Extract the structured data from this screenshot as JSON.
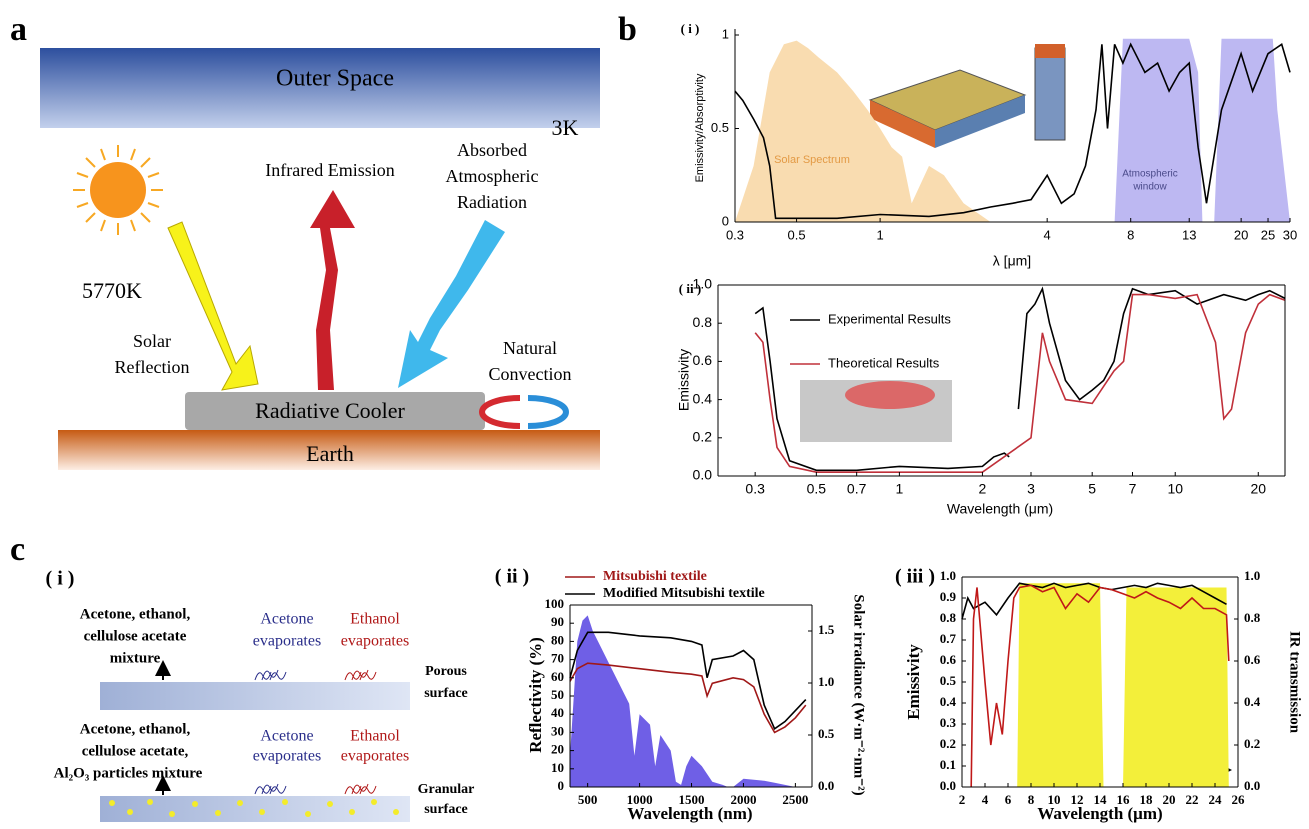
{
  "panel_labels": [
    "a",
    "b",
    "c"
  ],
  "diagram_a": {
    "outer_space": "Outer Space",
    "space_temp": "3K",
    "infrared": "Infrared  Emission",
    "absorbed": [
      "Absorbed",
      "Atmospheric",
      "Radiation"
    ],
    "sun_temp": "5770K",
    "solar_reflection": [
      "Solar",
      "Reflection"
    ],
    "convection": [
      "Natural",
      "Convection"
    ],
    "cooler": "Radiative Cooler",
    "earth": "Earth"
  },
  "diagram_c_i": {
    "sublabel": "( i )",
    "mixture1": [
      "Acetone, ethanol,",
      "cellulose acetate",
      "mixture"
    ],
    "acetone1": [
      "Acetone",
      "evaporates"
    ],
    "ethanol1": [
      "Ethanol",
      "evaporates"
    ],
    "surface1": [
      "Porous",
      "surface"
    ],
    "mixture2": [
      "Acetone, ethanol,",
      "cellulose acetate,",
      "Al₂O₃ particles mixture"
    ],
    "acetone2": [
      "Acetone",
      "evaporates"
    ],
    "ethanol2": [
      "Ethanol",
      "evaporates"
    ],
    "surface2": [
      "Granular",
      "surface"
    ]
  },
  "chart_data": [
    {
      "type": "line",
      "sublabel": "( i )",
      "xlabel": "λ [μm]",
      "ylabel": "Emissivity/Absorptivity",
      "xscale": "log",
      "xlim": [
        0.3,
        30
      ],
      "ylim": [
        0,
        1
      ],
      "xticks": [
        0.3,
        0.5,
        1,
        4,
        8,
        13,
        20,
        25,
        30
      ],
      "yticks": [
        0,
        0.5,
        1
      ],
      "annotations": [
        "Solar Spectrum",
        "Atmospheric",
        "window"
      ],
      "series": [
        {
          "style": "area",
          "color": "#f9dcb0",
          "x": [
            0.3,
            0.35,
            0.4,
            0.45,
            0.5,
            0.55,
            0.6,
            0.7,
            0.8,
            0.9,
            1,
            1.1,
            1.2,
            1.3,
            1.5,
            1.7,
            2,
            2.5
          ],
          "values": [
            0,
            0.3,
            0.8,
            0.95,
            0.97,
            0.93,
            0.88,
            0.8,
            0.7,
            0.6,
            0.5,
            0.4,
            0.35,
            0.1,
            0.3,
            0.25,
            0.1,
            0
          ]
        },
        {
          "style": "area",
          "color": "#bdb8f2",
          "x": [
            7,
            7.5,
            13,
            14,
            14.5,
            16,
            17,
            26,
            27,
            30
          ],
          "values": [
            0,
            0.98,
            0.98,
            0.8,
            0,
            0,
            0.98,
            0.98,
            0.6,
            0
          ]
        },
        {
          "style": "line",
          "color": "#000000",
          "x": [
            0.3,
            0.32,
            0.35,
            0.38,
            0.4,
            0.42,
            0.5,
            0.55,
            0.7,
            1,
            1.5,
            2,
            2.5,
            3,
            3.5,
            4,
            4.5,
            5,
            5.5,
            6,
            6.3,
            6.6,
            7,
            7.5,
            8,
            9,
            10,
            11,
            12,
            13,
            14,
            15,
            17,
            20,
            22,
            25,
            28,
            30
          ],
          "values": [
            0.7,
            0.65,
            0.55,
            0.45,
            0.3,
            0.02,
            0.02,
            0.02,
            0.02,
            0.04,
            0.03,
            0.05,
            0.08,
            0.1,
            0.12,
            0.25,
            0.1,
            0.15,
            0.3,
            0.6,
            0.95,
            0.5,
            0.95,
            0.85,
            0.95,
            0.8,
            0.85,
            0.7,
            0.8,
            0.85,
            0.4,
            0.1,
            0.6,
            0.9,
            0.7,
            0.9,
            0.95,
            0.8
          ]
        }
      ]
    },
    {
      "type": "line",
      "sublabel": "( ii )",
      "xlabel": "Wavelength (μm)",
      "ylabel": "Emissivity",
      "xscale": "log",
      "xlim": [
        0.22,
        25
      ],
      "ylim": [
        0,
        1
      ],
      "xticks": [
        0.3,
        0.5,
        0.7,
        1,
        2,
        3,
        5,
        7,
        10,
        20
      ],
      "yticks": [
        {
          "value": 0,
          "label": "0.0"
        },
        0.2,
        0.4,
        0.6,
        0.8,
        {
          "value": 1,
          "label": "1.0"
        }
      ],
      "series": [
        {
          "name": "Experimental Results",
          "style": "line",
          "color": "#000000",
          "x": [
            0.3,
            0.32,
            0.34,
            0.36,
            0.4,
            0.5,
            0.7,
            1,
            1.5,
            2,
            2.2,
            2.4,
            2.5,
            2.6,
            2.7,
            2.9,
            3.1,
            3.3,
            3.5,
            4,
            4.5,
            5,
            5.5,
            6,
            6.5,
            7,
            8,
            10,
            12,
            15,
            18,
            20,
            22,
            25
          ],
          "values": [
            0.85,
            0.88,
            0.6,
            0.3,
            0.08,
            0.03,
            0.03,
            0.05,
            0.04,
            0.05,
            0.1,
            0.12,
            0.1,
            null,
            0.35,
            0.85,
            0.9,
            0.98,
            0.8,
            0.5,
            0.4,
            0.45,
            0.5,
            0.6,
            0.85,
            0.98,
            0.95,
            0.97,
            0.9,
            0.95,
            0.92,
            0.95,
            0.97,
            0.93
          ]
        },
        {
          "name": "Theoretical Results",
          "style": "line",
          "color": "#c0303a",
          "x": [
            0.3,
            0.32,
            0.34,
            0.36,
            0.4,
            0.5,
            1,
            2,
            3,
            3.3,
            3.5,
            4,
            5,
            6,
            6.5,
            7,
            8,
            10,
            12,
            14,
            15,
            16,
            18,
            20,
            22,
            25
          ],
          "values": [
            0.75,
            0.7,
            0.4,
            0.15,
            0.05,
            0.02,
            0.02,
            0.02,
            0.2,
            0.75,
            0.6,
            0.4,
            0.38,
            0.55,
            0.6,
            0.95,
            0.95,
            0.93,
            0.95,
            0.7,
            0.3,
            0.35,
            0.75,
            0.9,
            0.95,
            0.92
          ]
        }
      ]
    },
    {
      "type": "line",
      "sublabel": "( ii )",
      "xlabel": "Wavelength (nm)",
      "ylabel": "Reflectivity (%)",
      "y2label": "Solar irradiance  (W·m⁻²·nm⁻²)",
      "xlim": [
        330,
        2660
      ],
      "ylim": [
        0,
        100
      ],
      "y2lim": [
        0,
        1.75
      ],
      "xticks": [
        500,
        1000,
        1500,
        2000,
        2500
      ],
      "yticks": [
        0,
        10,
        20,
        30,
        40,
        50,
        60,
        70,
        80,
        90,
        100
      ],
      "y2ticks": [
        {
          "value": 0,
          "label": "0.0"
        },
        0.5,
        {
          "value": 1,
          "label": "1.0"
        },
        1.5
      ],
      "series": [
        {
          "style": "area",
          "axis": "y2",
          "color": "#6f5fe6",
          "x": [
            330,
            400,
            450,
            500,
            550,
            600,
            700,
            800,
            900,
            950,
            1000,
            1100,
            1150,
            1200,
            1300,
            1350,
            1400,
            1450,
            1500,
            1550,
            1600,
            1700,
            1800,
            1850,
            1900,
            2000,
            2100,
            2200,
            2300,
            2400,
            2500
          ],
          "values": [
            0.3,
            1.4,
            1.6,
            1.65,
            1.5,
            1.4,
            1.2,
            1.0,
            0.8,
            0.3,
            0.7,
            0.6,
            0.2,
            0.5,
            0.35,
            0.05,
            0.02,
            0.2,
            0.3,
            0.25,
            0.2,
            0.05,
            0.02,
            0,
            0,
            0.08,
            0.07,
            0.06,
            0.04,
            0.02,
            0
          ]
        },
        {
          "name": "Mitsubishi textile",
          "style": "line",
          "color": "#a01818",
          "x": [
            330,
            400,
            500,
            700,
            1000,
            1300,
            1500,
            1600,
            1650,
            1700,
            1900,
            2000,
            2100,
            2200,
            2300,
            2400,
            2500,
            2600
          ],
          "values": [
            58,
            65,
            68,
            67,
            65,
            63,
            62,
            61,
            50,
            57,
            60,
            59,
            55,
            40,
            30,
            33,
            38,
            45
          ]
        },
        {
          "name": "Modified Mitsubishi  textile",
          "style": "line",
          "color": "#000000",
          "x": [
            330,
            400,
            500,
            700,
            1000,
            1300,
            1500,
            1600,
            1650,
            1700,
            1900,
            2000,
            2100,
            2200,
            2300,
            2400,
            2500,
            2600
          ],
          "values": [
            60,
            75,
            85,
            85,
            83,
            82,
            80,
            78,
            60,
            70,
            72,
            75,
            70,
            45,
            32,
            36,
            42,
            48
          ]
        }
      ]
    },
    {
      "type": "line",
      "sublabel": "( iii )",
      "xlabel": "Wavelength (μm)",
      "ylabel": "Emissivity",
      "y2label": "IR transmission",
      "xlim": [
        2,
        26
      ],
      "ylim": [
        0,
        1
      ],
      "y2lim": [
        0,
        1
      ],
      "xticks": [
        2,
        4,
        6,
        8,
        10,
        12,
        14,
        16,
        18,
        20,
        22,
        24,
        26
      ],
      "yticks": [
        {
          "value": 0,
          "label": "0.0"
        },
        0.1,
        0.2,
        0.3,
        0.4,
        0.5,
        0.6,
        0.7,
        0.8,
        0.9,
        {
          "value": 1,
          "label": "1.0"
        }
      ],
      "y2ticks": [
        {
          "value": 0,
          "label": "0.0"
        },
        0.2,
        0.4,
        0.6,
        0.8,
        {
          "value": 1,
          "label": "1.0"
        }
      ],
      "series": [
        {
          "style": "area",
          "axis": "y2",
          "color": "#f3ef3a",
          "x": [
            6.8,
            7,
            14,
            14.3,
            16,
            16.3,
            25,
            25.2
          ],
          "values": [
            0,
            0.97,
            0.97,
            0,
            0,
            0.95,
            0.95,
            0
          ]
        },
        {
          "style": "line",
          "color": "#000000",
          "x": [
            2,
            2.5,
            3,
            4,
            5,
            6,
            7,
            8,
            9,
            10,
            11,
            12,
            13,
            14,
            15,
            16,
            17,
            18,
            19,
            20,
            21,
            22,
            23,
            24,
            25
          ],
          "values": [
            0.8,
            0.9,
            0.85,
            0.88,
            0.82,
            0.9,
            0.97,
            0.96,
            0.95,
            0.97,
            0.95,
            0.96,
            0.97,
            0.95,
            0.94,
            0.95,
            0.96,
            0.95,
            0.97,
            0.96,
            0.95,
            0.96,
            0.93,
            0.9,
            0.87
          ]
        },
        {
          "style": "line",
          "color": "#c01818",
          "x": [
            2.8,
            3,
            3.3,
            4,
            4.5,
            5,
            5.5,
            6,
            6.5,
            7,
            8,
            9,
            10,
            11,
            12,
            13,
            14,
            15,
            16,
            17,
            18,
            19,
            20,
            21,
            22,
            23,
            24,
            25,
            25.2
          ],
          "values": [
            0,
            0.8,
            0.95,
            0.5,
            0.2,
            0.4,
            0.25,
            0.6,
            0.9,
            0.95,
            0.96,
            0.93,
            0.95,
            0.85,
            0.92,
            0.88,
            0.95,
            0.94,
            0.92,
            0.9,
            0.93,
            0.9,
            0.88,
            0.85,
            0.9,
            0.85,
            0.85,
            0.82,
            0.6
          ]
        }
      ]
    }
  ]
}
